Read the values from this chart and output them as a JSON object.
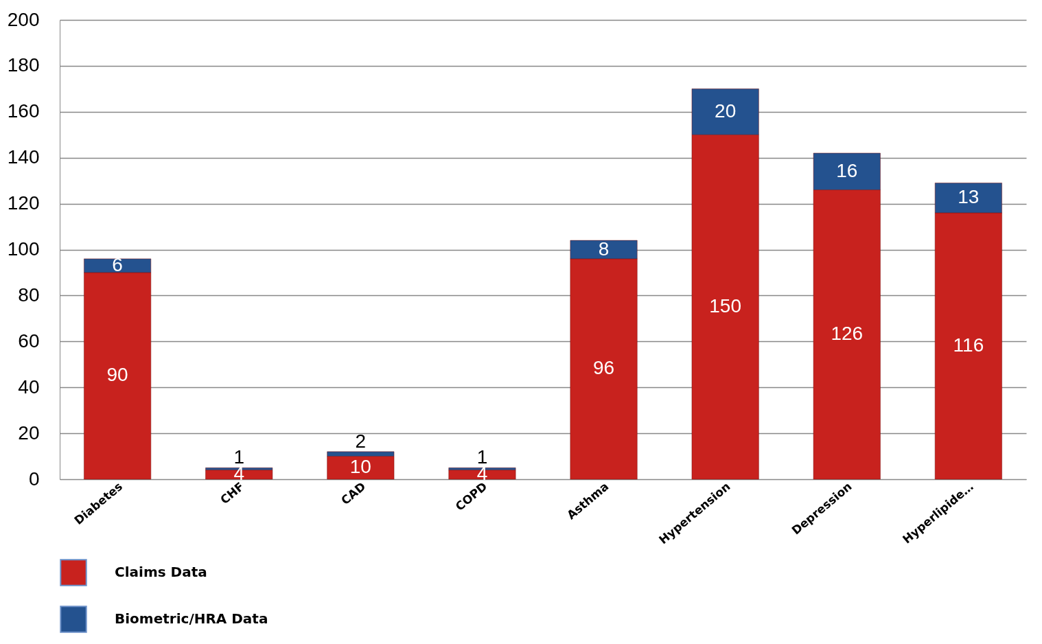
{
  "chart_data": {
    "type": "bar",
    "stacked": true,
    "categories": [
      "Diabetes",
      "CHF",
      "CAD",
      "COPD",
      "Asthma",
      "Hypertension",
      "Depression",
      "Hyperlipide…"
    ],
    "series": [
      {
        "name": "Claims Data",
        "color": "#c8221e",
        "values": [
          90,
          4,
          10,
          4,
          96,
          150,
          126,
          116
        ]
      },
      {
        "name": "Biometric/HRA Data",
        "color": "#24528f",
        "values": [
          6,
          1,
          2,
          1,
          8,
          20,
          16,
          13
        ]
      }
    ],
    "ylim": [
      0,
      200
    ],
    "yticks": [
      0,
      20,
      40,
      60,
      80,
      100,
      120,
      140,
      160,
      180,
      200
    ],
    "grid": "y",
    "legend": "bottom left",
    "data_labels": true
  }
}
